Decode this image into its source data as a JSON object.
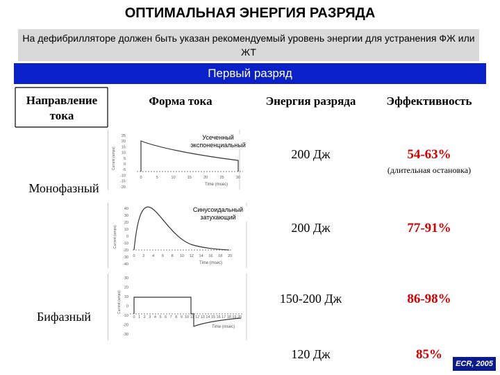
{
  "title": "ОПТИМАЛЬНАЯ ЭНЕРГИЯ РАЗРЯДА",
  "subtitle": "На дефибрилляторе должен быть указан рекомендуемый уровень энергии для устранения ФЖ или ЖТ",
  "banner": "Первый разряд",
  "headers": {
    "direction": "Направление тока",
    "waveform": "Форма тока",
    "energy": "Энергия разряда",
    "efficacy": "Эффективность"
  },
  "rows": {
    "mono_label": "Монофазный",
    "bi_label": "Бифазный",
    "r1": {
      "energy": "200 Дж",
      "efficacy": "54-63%",
      "note": "(длительная остановка)",
      "waveform_label": "Усеченный экспоненциальный"
    },
    "r2": {
      "energy": "200 Дж",
      "efficacy": "77-91%",
      "waveform_label": "Синусоидальный затухающий"
    },
    "r3": {
      "energy": "150-200 Дж",
      "efficacy": "86-98%"
    },
    "r4": {
      "energy": "120 Дж",
      "efficacy": "85%"
    }
  },
  "chart1": {
    "ylabel": "Current (amps)",
    "xlabel": "Time (msec)",
    "yticks": [
      "25",
      "20",
      "15",
      "10",
      "5",
      "0",
      "-5",
      "-10",
      "-15",
      "-20"
    ],
    "xticks": [
      "0",
      "5",
      "10",
      "15",
      "20",
      "25",
      "30"
    ]
  },
  "chart2": {
    "ylabel": "Current (amps)",
    "xlabel": "Time (msec)",
    "yticks": [
      "40",
      "30",
      "20",
      "10",
      "0",
      "-10",
      "-20",
      "-30",
      "-40"
    ],
    "xticks": [
      "0",
      "2",
      "4",
      "6",
      "8",
      "10",
      "12",
      "14",
      "16",
      "18",
      "20"
    ]
  },
  "chart3": {
    "ylabel": "Current (amps)",
    "xlabel": "Time (msec)",
    "yticks": [
      "30",
      "20",
      "10",
      "0",
      "-10",
      "-20",
      "-30"
    ],
    "xticks": [
      "0",
      "1",
      "2",
      "3",
      "4",
      "5",
      "6",
      "7",
      "8",
      "9",
      "10",
      "11",
      "12",
      "13",
      "14",
      "15",
      "16",
      "17",
      "18",
      "19",
      "20"
    ]
  },
  "badge": "ECR, 2005",
  "colors": {
    "banner": "#0a20c8",
    "efficacy": "#d40000",
    "badge": "#0a1c8c"
  }
}
